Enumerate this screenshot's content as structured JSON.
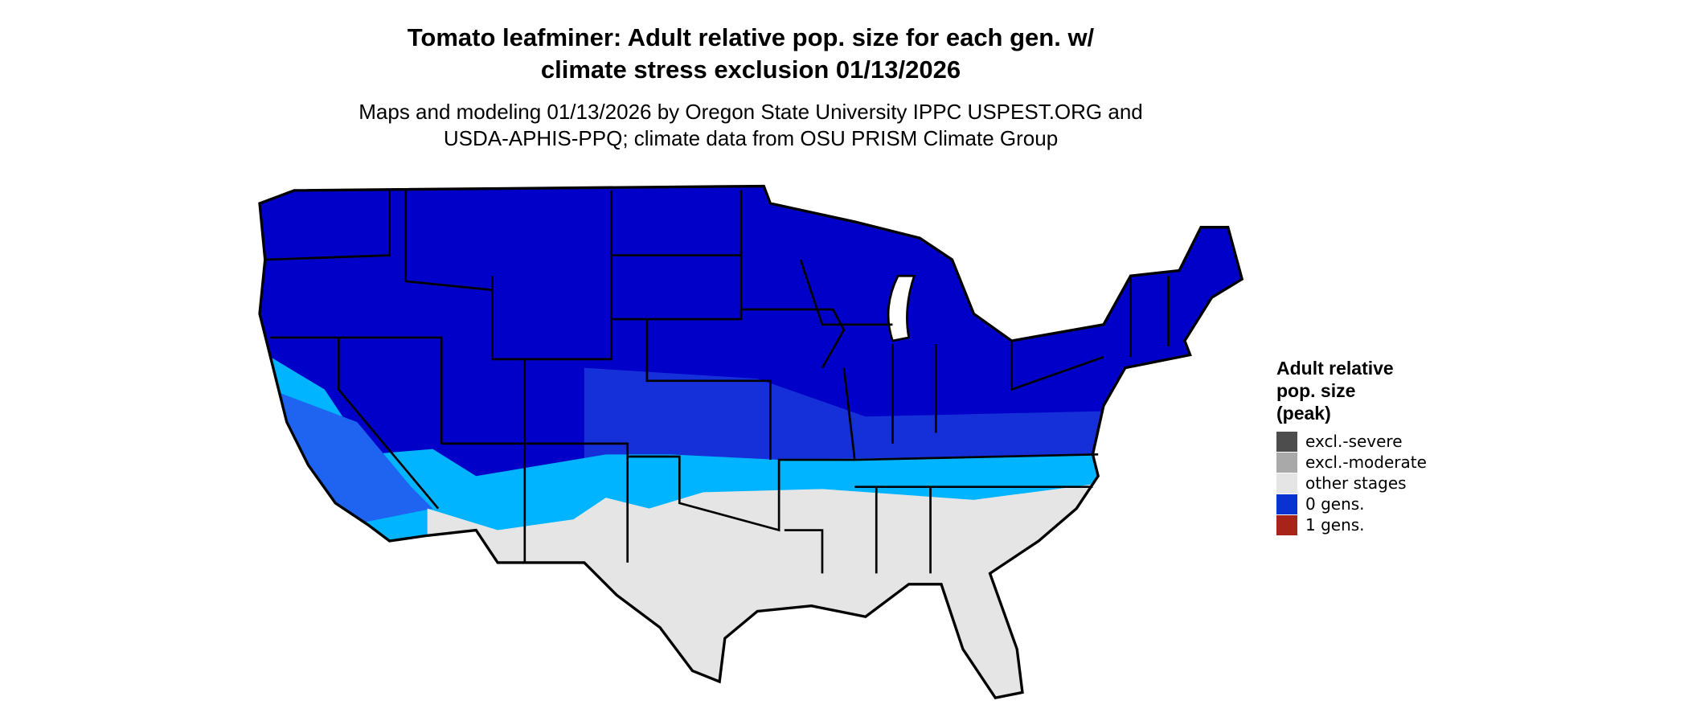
{
  "title": [
    "Tomato leafminer: Adult relative pop. size for each gen. w/",
    "climate stress exclusion 01/13/2026"
  ],
  "subtitle": [
    "Maps and modeling 01/13/2026 by Oregon State University IPPC USPEST.ORG and",
    "USDA-APHIS-PPQ; climate data from OSU PRISM Climate Group"
  ],
  "legend": {
    "title": [
      "Adult relative",
      "pop. size",
      "(peak)"
    ],
    "items": [
      {
        "label": "excl.-severe",
        "color": "#4d4d4d"
      },
      {
        "label": "excl.-moderate",
        "color": "#a9a9a9"
      },
      {
        "label": "other stages",
        "color": "#e5e5e5"
      },
      {
        "label": "0 gens.",
        "color": "#0a32d2"
      },
      {
        "label": "1 gens.",
        "color": "#a82418"
      }
    ]
  }
}
